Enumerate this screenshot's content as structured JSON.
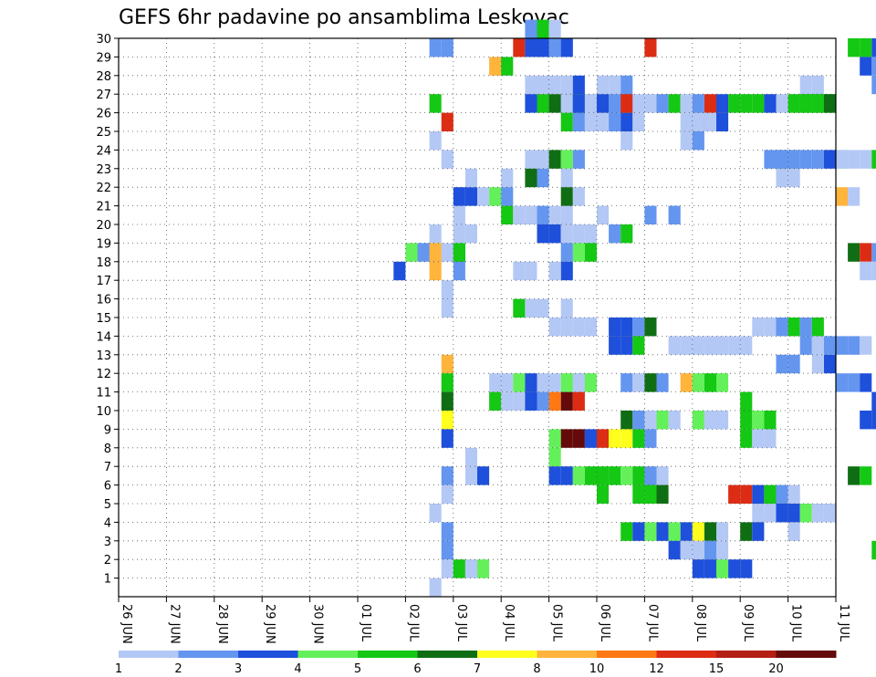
{
  "chart_data": {
    "type": "heatmap",
    "title": "GEFS 6hr padavine po ansamblima Leskovac",
    "y_ticks": [
      "1",
      "2",
      "3",
      "4",
      "5",
      "6",
      "7",
      "8",
      "9",
      "10",
      "11",
      "12",
      "13",
      "14",
      "15",
      "16",
      "17",
      "18",
      "19",
      "20",
      "21",
      "22",
      "23",
      "24",
      "25",
      "26",
      "27",
      "28",
      "29",
      "30"
    ],
    "ylim": [
      0,
      30
    ],
    "x_ticks": [
      "26 JUN",
      "27 JUN",
      "28 JUN",
      "29 JUN",
      "30 JUN",
      "01 JUL",
      "02 JUL",
      "03 JUL",
      "04 JUL",
      "05 JUL",
      "06 JUL",
      "07 JUL",
      "08 JUL",
      "09 JUL",
      "10 JUL",
      "11 JUL"
    ],
    "xlim": [
      0,
      15
    ],
    "steps_per_day": 4,
    "grid": true,
    "colorbar": {
      "labels": [
        "1",
        "2",
        "3",
        "4",
        "5",
        "6",
        "7",
        "8",
        "10",
        "12",
        "15",
        "20"
      ],
      "colors": [
        "#b4c8f5",
        "#6496f0",
        "#1e50dc",
        "#64f05a",
        "#14c814",
        "#0f6e14",
        "#ffff1e",
        "#ffb43c",
        "#ff7814",
        "#dc2d14",
        "#b41e14",
        "#640a0a"
      ]
    },
    "cells": [
      [
        28,
        17,
        2
      ],
      [
        28,
        18,
        3
      ],
      [
        23,
        17,
        3
      ],
      [
        24,
        18,
        4
      ],
      [
        25,
        18,
        2
      ],
      [
        26,
        18,
        2
      ],
      [
        27,
        18,
        1
      ],
      [
        28,
        18,
        5
      ],
      [
        28,
        19,
        1
      ],
      [
        29,
        19,
        1
      ],
      [
        28,
        20,
        1
      ],
      [
        28,
        21,
        3
      ],
      [
        29,
        21,
        3
      ],
      [
        30,
        21,
        1
      ],
      [
        29,
        22,
        1
      ],
      [
        32,
        22,
        1
      ],
      [
        37,
        26,
        3
      ],
      [
        38,
        26,
        1
      ],
      [
        39,
        26,
        1
      ],
      [
        37,
        25,
        5
      ],
      [
        38,
        25,
        2
      ],
      [
        39,
        25,
        1
      ],
      [
        40,
        25,
        1
      ],
      [
        41,
        26,
        2
      ],
      [
        42,
        26,
        3
      ],
      [
        41,
        25,
        2
      ],
      [
        42,
        25,
        3
      ],
      [
        43,
        25,
        1
      ],
      [
        42,
        24,
        1
      ],
      [
        41,
        14,
        3
      ],
      [
        42,
        14,
        3
      ],
      [
        43,
        14,
        2
      ],
      [
        44,
        14,
        6
      ],
      [
        41,
        13,
        3
      ],
      [
        42,
        13,
        3
      ],
      [
        43,
        13,
        5
      ],
      [
        44,
        29,
        10
      ],
      [
        47,
        25,
        1
      ],
      [
        48,
        25,
        2
      ],
      [
        57,
        27,
        1
      ],
      [
        58,
        27,
        1
      ],
      [
        57,
        26,
        5
      ],
      [
        58,
        26,
        5
      ],
      [
        59,
        26,
        5
      ],
      [
        55,
        23,
        5
      ],
      [
        56,
        23,
        4
      ],
      [
        60,
        23,
        4
      ],
      [
        67,
        23,
        1
      ],
      [
        68,
        23,
        1
      ],
      [
        31,
        21,
        4
      ],
      [
        32,
        21,
        2
      ],
      [
        32,
        20,
        5
      ],
      [
        37,
        20,
        1
      ],
      [
        40,
        20,
        1
      ],
      [
        44,
        20,
        2
      ],
      [
        46,
        20,
        1
      ],
      [
        27,
        12,
        8
      ],
      [
        27,
        11,
        5
      ],
      [
        27,
        10,
        6
      ],
      [
        27,
        9,
        7
      ],
      [
        27,
        8,
        3
      ],
      [
        27,
        6,
        2
      ],
      [
        27,
        5,
        1
      ],
      [
        36,
        7,
        4
      ],
      [
        38,
        11,
        5
      ],
      [
        39,
        11,
        4
      ],
      [
        42,
        11,
        2
      ],
      [
        43,
        11,
        1
      ],
      [
        31,
        10,
        5
      ],
      [
        32,
        10,
        1
      ],
      [
        33,
        10,
        1
      ],
      [
        34,
        10,
        3
      ],
      [
        35,
        10,
        2
      ],
      [
        36,
        10,
        9
      ],
      [
        37,
        10,
        12
      ],
      [
        38,
        10,
        10
      ],
      [
        42,
        9,
        6
      ],
      [
        43,
        9,
        2
      ],
      [
        44,
        9,
        1
      ],
      [
        45,
        9,
        4
      ],
      [
        46,
        9,
        1
      ],
      [
        48,
        9,
        4
      ],
      [
        49,
        9,
        1
      ],
      [
        50,
        9,
        1
      ],
      [
        36,
        8,
        4
      ],
      [
        37,
        8,
        12
      ],
      [
        38,
        8,
        12
      ],
      [
        39,
        8,
        3
      ],
      [
        40,
        8,
        10
      ],
      [
        41,
        8,
        7
      ],
      [
        42,
        8,
        7
      ],
      [
        43,
        8,
        5
      ],
      [
        44,
        8,
        2
      ],
      [
        31,
        11,
        1
      ],
      [
        32,
        11,
        1
      ],
      [
        33,
        11,
        4
      ],
      [
        34,
        11,
        3
      ],
      [
        35,
        11,
        1
      ],
      [
        36,
        11,
        1
      ],
      [
        37,
        11,
        4
      ],
      [
        38,
        11,
        1
      ],
      [
        44,
        11,
        6
      ],
      [
        45,
        11,
        2
      ],
      [
        47,
        11,
        8
      ],
      [
        48,
        11,
        4
      ],
      [
        49,
        11,
        5
      ],
      [
        50,
        11,
        4
      ],
      [
        52,
        10,
        5
      ],
      [
        52,
        9,
        5
      ],
      [
        52,
        8,
        5
      ],
      [
        53,
        9,
        4
      ],
      [
        54,
        9,
        5
      ],
      [
        53,
        8,
        1
      ],
      [
        54,
        8,
        1
      ],
      [
        59,
        12,
        3
      ],
      [
        58,
        12,
        1
      ],
      [
        55,
        12,
        2
      ],
      [
        56,
        12,
        2
      ],
      [
        60,
        11,
        2
      ],
      [
        61,
        11,
        2
      ],
      [
        62,
        11,
        3
      ],
      [
        63,
        10,
        3
      ],
      [
        68,
        10,
        2
      ],
      [
        69,
        10,
        1
      ],
      [
        36,
        6,
        3
      ],
      [
        37,
        6,
        3
      ],
      [
        38,
        6,
        4
      ],
      [
        39,
        6,
        5
      ],
      [
        40,
        6,
        5
      ],
      [
        41,
        6,
        5
      ],
      [
        42,
        6,
        4
      ],
      [
        43,
        6,
        5
      ],
      [
        44,
        6,
        2
      ],
      [
        45,
        6,
        1
      ],
      [
        43,
        5,
        5
      ],
      [
        44,
        5,
        5
      ],
      [
        45,
        5,
        6
      ],
      [
        40,
        5,
        5
      ],
      [
        44,
        5,
        5
      ],
      [
        42,
        3,
        5
      ],
      [
        43,
        3,
        3
      ],
      [
        44,
        3,
        4
      ],
      [
        45,
        3,
        3
      ],
      [
        46,
        3,
        4
      ],
      [
        47,
        3,
        3
      ],
      [
        48,
        3,
        7
      ],
      [
        49,
        3,
        6
      ],
      [
        50,
        3,
        1
      ],
      [
        46,
        2,
        3
      ],
      [
        47,
        2,
        1
      ],
      [
        48,
        2,
        1
      ],
      [
        49,
        2,
        2
      ],
      [
        50,
        2,
        1
      ],
      [
        48,
        1,
        3
      ],
      [
        49,
        1,
        3
      ],
      [
        50,
        1,
        4
      ],
      [
        51,
        1,
        3
      ],
      [
        52,
        1,
        3
      ],
      [
        51,
        5,
        10
      ],
      [
        52,
        5,
        10
      ],
      [
        53,
        5,
        3
      ],
      [
        54,
        5,
        5
      ],
      [
        55,
        5,
        2
      ],
      [
        56,
        5,
        1
      ],
      [
        53,
        4,
        1
      ],
      [
        54,
        4,
        1
      ],
      [
        55,
        4,
        3
      ],
      [
        56,
        4,
        3
      ],
      [
        57,
        4,
        4
      ],
      [
        58,
        4,
        1
      ],
      [
        59,
        4,
        1
      ],
      [
        52,
        3,
        6
      ],
      [
        53,
        3,
        3
      ],
      [
        56,
        3,
        1
      ],
      [
        34,
        23,
        1
      ],
      [
        35,
        23,
        1
      ],
      [
        36,
        23,
        6
      ],
      [
        37,
        23,
        4
      ],
      [
        38,
        23,
        2
      ],
      [
        34,
        22,
        6
      ],
      [
        35,
        22,
        2
      ],
      [
        37,
        22,
        1
      ],
      [
        37,
        21,
        6
      ],
      [
        38,
        21,
        1
      ],
      [
        33,
        20,
        1
      ],
      [
        34,
        20,
        1
      ],
      [
        35,
        20,
        2
      ],
      [
        36,
        20,
        1
      ],
      [
        35,
        19,
        3
      ],
      [
        36,
        19,
        3
      ],
      [
        37,
        19,
        1
      ],
      [
        38,
        19,
        1
      ],
      [
        39,
        19,
        1
      ],
      [
        41,
        19,
        2
      ],
      [
        42,
        19,
        5
      ],
      [
        33,
        17,
        1
      ],
      [
        34,
        17,
        1
      ],
      [
        37,
        17,
        3
      ],
      [
        33,
        15,
        5
      ],
      [
        34,
        15,
        1
      ],
      [
        35,
        15,
        1
      ],
      [
        37,
        15,
        1
      ],
      [
        36,
        14,
        1
      ],
      [
        37,
        14,
        1
      ],
      [
        38,
        14,
        1
      ],
      [
        39,
        14,
        1
      ],
      [
        26,
        29,
        2
      ],
      [
        27,
        29,
        2
      ],
      [
        34,
        29,
        1
      ],
      [
        35,
        29,
        2
      ],
      [
        36,
        29,
        2
      ],
      [
        37,
        29,
        1
      ],
      [
        34,
        30,
        2
      ],
      [
        35,
        30,
        5
      ],
      [
        36,
        30,
        1
      ],
      [
        33,
        29,
        10
      ],
      [
        34,
        29,
        3
      ],
      [
        35,
        29,
        3
      ],
      [
        36,
        29,
        2
      ],
      [
        37,
        29,
        3
      ],
      [
        31,
        28,
        8
      ],
      [
        32,
        28,
        5
      ],
      [
        34,
        27,
        1
      ],
      [
        35,
        27,
        1
      ],
      [
        36,
        27,
        1
      ],
      [
        37,
        27,
        1
      ],
      [
        38,
        27,
        3
      ],
      [
        40,
        27,
        1
      ],
      [
        41,
        27,
        1
      ],
      [
        42,
        27,
        2
      ],
      [
        34,
        26,
        3
      ],
      [
        35,
        26,
        5
      ],
      [
        36,
        26,
        6
      ],
      [
        37,
        26,
        1
      ],
      [
        38,
        26,
        5
      ],
      [
        40,
        26,
        3
      ],
      [
        41,
        26,
        2
      ],
      [
        42,
        26,
        10
      ],
      [
        43,
        26,
        1
      ],
      [
        44,
        26,
        1
      ],
      [
        45,
        26,
        2
      ],
      [
        46,
        26,
        5
      ],
      [
        47,
        26,
        1
      ],
      [
        48,
        26,
        2
      ],
      [
        49,
        26,
        10
      ],
      [
        50,
        26,
        3
      ],
      [
        51,
        26,
        5
      ],
      [
        52,
        26,
        5
      ],
      [
        53,
        26,
        5
      ],
      [
        54,
        26,
        3
      ],
      [
        55,
        26,
        1
      ],
      [
        56,
        26,
        5
      ],
      [
        57,
        26,
        5
      ],
      [
        58,
        26,
        5
      ],
      [
        59,
        26,
        6
      ],
      [
        26,
        26,
        5
      ],
      [
        27,
        25,
        10
      ],
      [
        26,
        24,
        1
      ],
      [
        27,
        23,
        1
      ],
      [
        26,
        19,
        1
      ],
      [
        26,
        18,
        8
      ],
      [
        27,
        16,
        1
      ],
      [
        27,
        15,
        1
      ],
      [
        26,
        17,
        8
      ],
      [
        27,
        2,
        2
      ],
      [
        27,
        1,
        1
      ],
      [
        26,
        4,
        1
      ],
      [
        27,
        3,
        2
      ],
      [
        26,
        0,
        1
      ],
      [
        36,
        17,
        1
      ],
      [
        38,
        18,
        4
      ],
      [
        39,
        18,
        5
      ],
      [
        37,
        18,
        2
      ],
      [
        46,
        20,
        2
      ],
      [
        55,
        22,
        1
      ],
      [
        56,
        22,
        1
      ],
      [
        47,
        24,
        1
      ],
      [
        48,
        24,
        2
      ],
      [
        48,
        25,
        1
      ],
      [
        49,
        25,
        1
      ],
      [
        50,
        25,
        3
      ],
      [
        46,
        13,
        1
      ],
      [
        47,
        13,
        1
      ],
      [
        48,
        13,
        1
      ],
      [
        49,
        13,
        1
      ],
      [
        50,
        13,
        1
      ],
      [
        51,
        13,
        1
      ],
      [
        52,
        13,
        1
      ],
      [
        53,
        14,
        1
      ],
      [
        54,
        14,
        1
      ],
      [
        55,
        14,
        2
      ],
      [
        56,
        14,
        5
      ],
      [
        57,
        14,
        2
      ],
      [
        58,
        14,
        5
      ],
      [
        57,
        13,
        2
      ],
      [
        58,
        13,
        1
      ],
      [
        59,
        13,
        2
      ],
      [
        60,
        13,
        2
      ],
      [
        61,
        13,
        2
      ],
      [
        62,
        13,
        1
      ],
      [
        54,
        23,
        2
      ],
      [
        55,
        23,
        2
      ],
      [
        56,
        23,
        2
      ],
      [
        57,
        23,
        2
      ],
      [
        58,
        23,
        2
      ],
      [
        59,
        23,
        3
      ],
      [
        60,
        23,
        1
      ],
      [
        61,
        23,
        1
      ],
      [
        62,
        23,
        1
      ],
      [
        63,
        23,
        5
      ],
      [
        64,
        23,
        9
      ],
      [
        65,
        23,
        1
      ],
      [
        66,
        23,
        1
      ],
      [
        61,
        29,
        5
      ],
      [
        62,
        29,
        5
      ],
      [
        63,
        29,
        3
      ],
      [
        62,
        28,
        3
      ],
      [
        63,
        28,
        2
      ],
      [
        64,
        28,
        1
      ],
      [
        65,
        28,
        1
      ],
      [
        61,
        18,
        6
      ],
      [
        62,
        18,
        10
      ],
      [
        63,
        18,
        2
      ],
      [
        64,
        18,
        3
      ],
      [
        65,
        18,
        1
      ],
      [
        62,
        17,
        1
      ],
      [
        63,
        17,
        1
      ],
      [
        63,
        27,
        2
      ],
      [
        64,
        27,
        1
      ],
      [
        60,
        21,
        8
      ],
      [
        61,
        21,
        1
      ],
      [
        62,
        9,
        3
      ],
      [
        63,
        9,
        3
      ],
      [
        61,
        6,
        6
      ],
      [
        62,
        6,
        5
      ],
      [
        66,
        6,
        2
      ],
      [
        67,
        6,
        2
      ],
      [
        68,
        6,
        8
      ],
      [
        69,
        6,
        3
      ],
      [
        70,
        6,
        6
      ],
      [
        64,
        6,
        1
      ],
      [
        66,
        2,
        1
      ],
      [
        67,
        2,
        3
      ],
      [
        68,
        2,
        1
      ],
      [
        63,
        2,
        5
      ],
      [
        66,
        3,
        2
      ],
      [
        67,
        3,
        2
      ],
      [
        65,
        29,
        2
      ],
      [
        66,
        29,
        2
      ],
      [
        67,
        29,
        2
      ],
      [
        67,
        27,
        8
      ],
      [
        68,
        27,
        1
      ],
      [
        70,
        27,
        1
      ],
      [
        71,
        27,
        1
      ],
      [
        38,
        26,
        3
      ],
      [
        39,
        26,
        1
      ],
      [
        29,
        6,
        1
      ],
      [
        30,
        6,
        3
      ],
      [
        29,
        7,
        1
      ],
      [
        28,
        1,
        5
      ],
      [
        29,
        1,
        1
      ],
      [
        30,
        1,
        4
      ]
    ]
  }
}
